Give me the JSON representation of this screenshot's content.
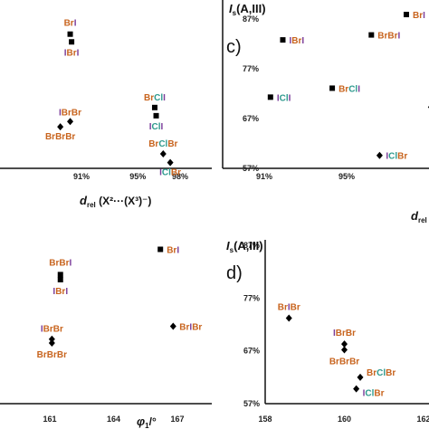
{
  "colors": {
    "Br": "#c8641e",
    "I": "#7b3d9a",
    "Cl": "#2e9a8e",
    "axis": "#111111"
  },
  "chart_data": [
    {
      "type": "scatter",
      "panel_letter": "",
      "xlabel_symbol": "d",
      "xlabel_sub": "rel",
      "xlabel_rest": " (X²···(X³)⁻)",
      "xticks": [
        "91%",
        "95%",
        "98%"
      ],
      "xtick_values": [
        91,
        95,
        98
      ],
      "points": [
        {
          "x": 90.2,
          "y": 84.8,
          "marker": "square",
          "label": [
            [
              "Br",
              "Br"
            ],
            [
              "I",
              "I"
            ]
          ],
          "above": true
        },
        {
          "x": 90.3,
          "y": 83.2,
          "marker": "square",
          "label": [
            [
              "I",
              "I"
            ],
            [
              "Br",
              "Br"
            ],
            [
              "I",
              "I"
            ]
          ],
          "above": false
        },
        {
          "x": 96.2,
          "y": 69.6,
          "marker": "square",
          "label": [
            [
              "Br",
              "Br"
            ],
            [
              "Cl",
              "Cl"
            ],
            [
              "I",
              "I"
            ]
          ],
          "above": true
        },
        {
          "x": 96.3,
          "y": 67.9,
          "marker": "square",
          "label": [
            [
              "I",
              "I"
            ],
            [
              "Cl",
              "Cl"
            ],
            [
              "I",
              "I"
            ]
          ],
          "above": false
        },
        {
          "x": 90.2,
          "y": 66.7,
          "marker": "diamond",
          "label": [
            [
              "I",
              "I"
            ],
            [
              "Br",
              "Br"
            ],
            [
              "Br",
              "Br"
            ]
          ],
          "above": true
        },
        {
          "x": 89.5,
          "y": 65.6,
          "marker": "diamond",
          "label": [
            [
              "Br",
              "Br"
            ],
            [
              "Br",
              "Br"
            ],
            [
              "Br",
              "Br"
            ]
          ],
          "above": false
        },
        {
          "x": 96.8,
          "y": 60.0,
          "marker": "diamond",
          "label": [
            [
              "Br",
              "Br"
            ],
            [
              "Cl",
              "Cl"
            ],
            [
              "Br",
              "Br"
            ]
          ],
          "above": true
        },
        {
          "x": 97.3,
          "y": 58.2,
          "marker": "diamond",
          "label": [
            [
              "I",
              "I"
            ],
            [
              "Cl",
              "Cl"
            ],
            [
              "Br",
              "Br"
            ]
          ],
          "above": false
        }
      ]
    },
    {
      "type": "scatter",
      "panel_letter": "c)",
      "ylabel": "I",
      "ylabel_sub": "s",
      "ylabel_rest": "(A,III)",
      "yticks": [
        "87%",
        "77%",
        "67%",
        "57%"
      ],
      "ytick_values": [
        87,
        77,
        67,
        57
      ],
      "xlabel_symbol": "d",
      "xlabel_sub": "rel",
      "xticks": [
        "91%",
        "95%"
      ],
      "xtick_values": [
        91,
        95
      ],
      "points": [
        {
          "x": 97.9,
          "y": 87.9,
          "marker": "square",
          "label": [
            [
              "Br",
              "Br"
            ],
            [
              "I",
              "I"
            ]
          ]
        },
        {
          "x": 96.2,
          "y": 83.8,
          "marker": "square",
          "label": [
            [
              "Br",
              "Br"
            ],
            [
              "Br",
              "Br"
            ],
            [
              "I",
              "I"
            ]
          ]
        },
        {
          "x": 91.9,
          "y": 82.8,
          "marker": "square",
          "label": [
            [
              "I",
              "I"
            ],
            [
              "Br",
              "Br"
            ],
            [
              "I",
              "I"
            ]
          ]
        },
        {
          "x": 94.3,
          "y": 73.1,
          "marker": "square",
          "label": [
            [
              "Br",
              "Br"
            ],
            [
              "Cl",
              "Cl"
            ],
            [
              "I",
              "I"
            ]
          ]
        },
        {
          "x": 91.3,
          "y": 71.3,
          "marker": "square",
          "label": [
            [
              "I",
              "I"
            ],
            [
              "Cl",
              "Cl"
            ],
            [
              "I",
              "I"
            ]
          ]
        },
        {
          "x": 99.1,
          "y": 69.3,
          "marker": "diamond",
          "label": [
            [
              "I",
              "I"
            ],
            [
              "Br",
              "Br"
            ],
            [
              "Br",
              "Br"
            ]
          ]
        },
        {
          "x": 96.6,
          "y": 59.6,
          "marker": "diamond",
          "label": [
            [
              "I",
              "I"
            ],
            [
              "Cl",
              "Cl"
            ],
            [
              "Br",
              "Br"
            ]
          ]
        }
      ]
    },
    {
      "type": "scatter",
      "panel_letter": "",
      "xlabel_symbol": "φ",
      "xlabel_sub": "1",
      "xlabel_rest": "/°",
      "xticks": [
        "161",
        "164",
        "167"
      ],
      "xtick_values": [
        161,
        164,
        167
      ],
      "points": [
        {
          "x": 166.2,
          "y": 84.5,
          "marker": "square",
          "label": [
            [
              "Br",
              "Br"
            ],
            [
              "I",
              "I"
            ]
          ]
        },
        {
          "x": 161.5,
          "y": 80.0,
          "marker": "square",
          "label": [
            [
              "Br",
              "Br"
            ],
            [
              "Br",
              "Br"
            ],
            [
              "I",
              "I"
            ]
          ]
        },
        {
          "x": 161.5,
          "y": 79.1,
          "marker": "square",
          "label": [
            [
              "I",
              "I"
            ],
            [
              "Br",
              "Br"
            ],
            [
              "I",
              "I"
            ]
          ]
        },
        {
          "x": 166.8,
          "y": 70.8,
          "marker": "diamond",
          "label": [
            [
              "Br",
              "Br"
            ],
            [
              "I",
              "I"
            ],
            [
              "Br",
              "Br"
            ]
          ]
        },
        {
          "x": 161.1,
          "y": 68.5,
          "marker": "diamond",
          "label": [
            [
              "I",
              "I"
            ],
            [
              "Br",
              "Br"
            ],
            [
              "Br",
              "Br"
            ]
          ]
        },
        {
          "x": 161.1,
          "y": 67.8,
          "marker": "diamond",
          "label": [
            [
              "Br",
              "Br"
            ],
            [
              "Br",
              "Br"
            ],
            [
              "Br",
              "Br"
            ]
          ]
        }
      ]
    },
    {
      "type": "scatter",
      "panel_letter": "d)",
      "ylabel": "I",
      "ylabel_sub": "s",
      "ylabel_rest": "(A,III)",
      "yticks": [
        "87%",
        "77%",
        "67%",
        "57%"
      ],
      "ytick_values": [
        87,
        77,
        67,
        57
      ],
      "xticks": [
        "158",
        "160",
        "162"
      ],
      "xtick_values": [
        158,
        160,
        162
      ],
      "points": [
        {
          "x": 158.6,
          "y": 73.2,
          "marker": "diamond",
          "label": [
            [
              "Br",
              "Br"
            ],
            [
              "I",
              "I"
            ],
            [
              "Br",
              "Br"
            ]
          ]
        },
        {
          "x": 160.0,
          "y": 68.3,
          "marker": "diamond",
          "label": [
            [
              "I",
              "I"
            ],
            [
              "Br",
              "Br"
            ],
            [
              "Br",
              "Br"
            ]
          ]
        },
        {
          "x": 160.0,
          "y": 67.2,
          "marker": "diamond",
          "label": [
            [
              "Br",
              "Br"
            ],
            [
              "Br",
              "Br"
            ],
            [
              "Br",
              "Br"
            ]
          ]
        },
        {
          "x": 160.4,
          "y": 62.0,
          "marker": "diamond",
          "label": [
            [
              "Br",
              "Br"
            ],
            [
              "Cl",
              "Cl"
            ],
            [
              "Br",
              "Br"
            ]
          ]
        },
        {
          "x": 160.3,
          "y": 59.8,
          "marker": "diamond",
          "label": [
            [
              "I",
              "I"
            ],
            [
              "Cl",
              "Cl"
            ],
            [
              "Br",
              "Br"
            ]
          ]
        }
      ]
    }
  ]
}
